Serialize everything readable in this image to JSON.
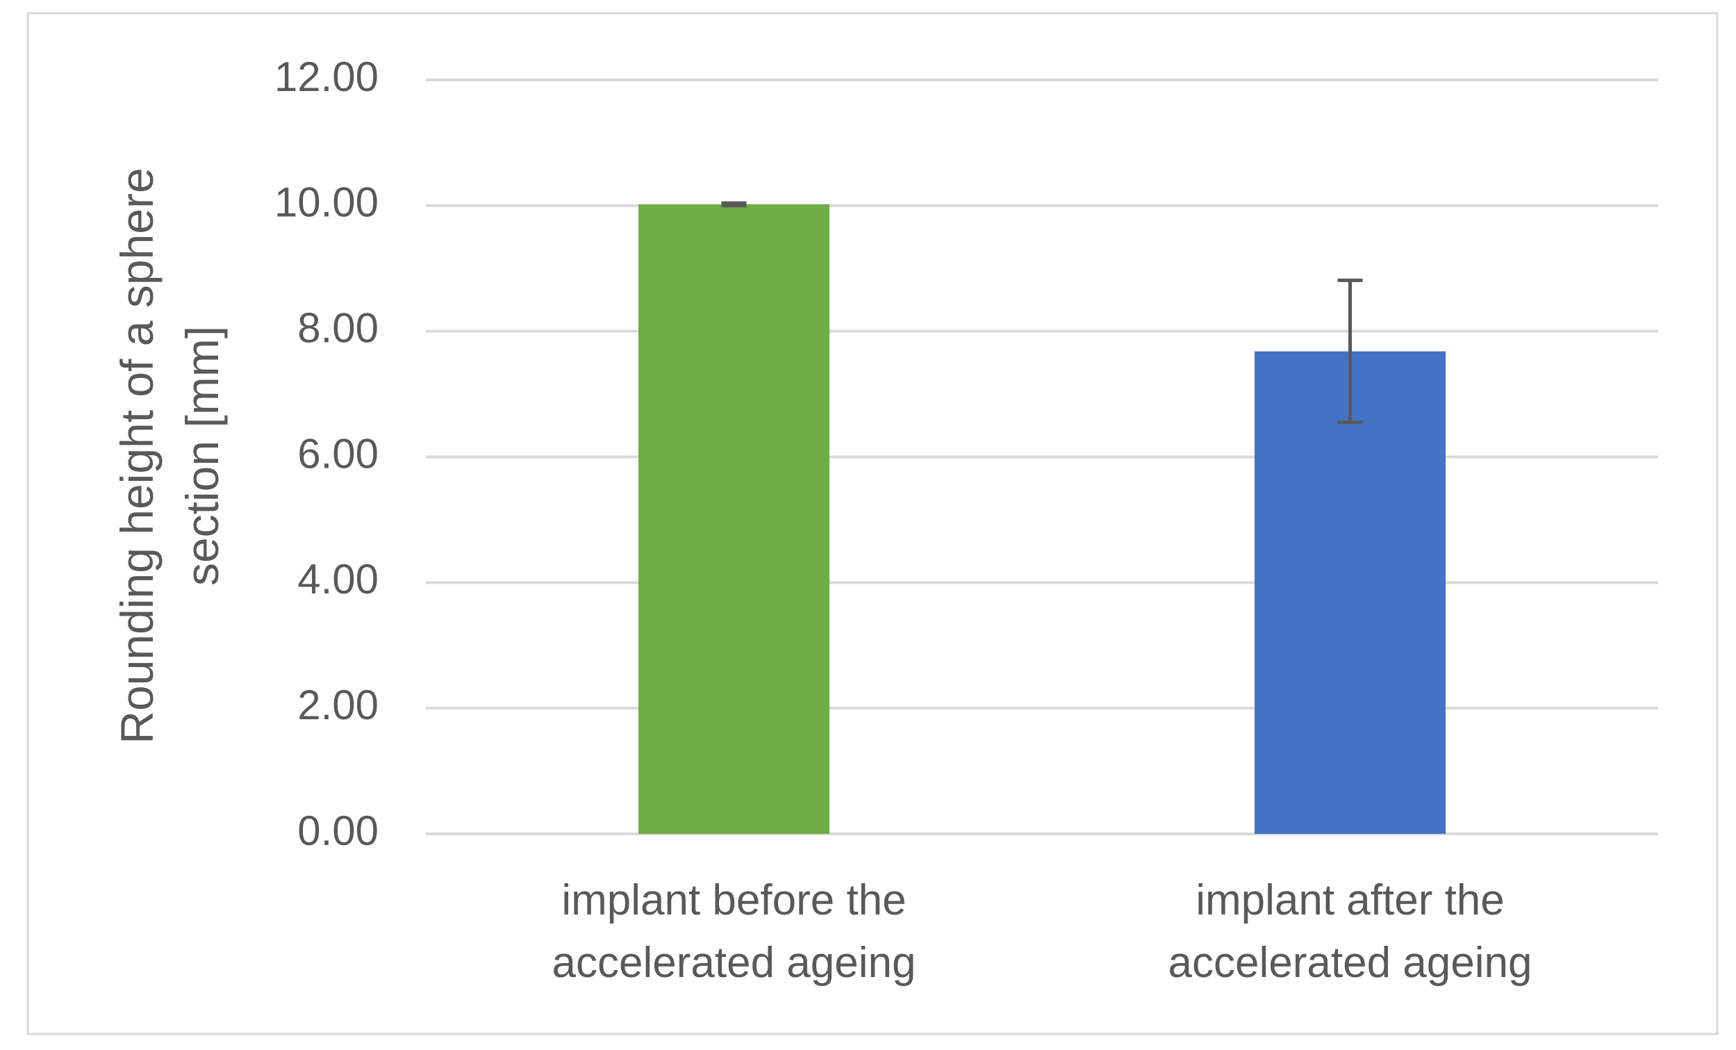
{
  "chart_data": {
    "type": "bar",
    "y_label": "Rounding height of a sphere section  [mm]",
    "categories": [
      "implant before the accelerated ageing",
      "implant after  the accelerated ageing"
    ],
    "values": [
      10.02,
      7.68
    ],
    "errors": [
      0.02,
      1.13
    ],
    "colors": [
      "#70ad47",
      "#4472c4"
    ],
    "ylim": [
      0,
      12
    ],
    "yticks": [
      {
        "value": 0,
        "label": "0.00"
      },
      {
        "value": 2,
        "label": "2.00"
      },
      {
        "value": 4,
        "label": "4.00"
      },
      {
        "value": 6,
        "label": "6.00"
      },
      {
        "value": 8,
        "label": "8.00"
      },
      {
        "value": 10,
        "label": "10.00"
      },
      {
        "value": 12,
        "label": "12.00"
      }
    ],
    "grid": true
  }
}
